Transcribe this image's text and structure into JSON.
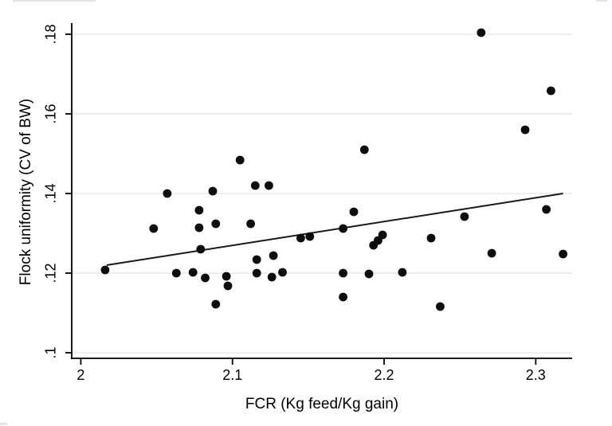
{
  "chart_data": {
    "type": "scatter",
    "title": "",
    "xlabel": "FCR (Kg feed/Kg gain)",
    "ylabel": "Flock uniformity (CV of BW)",
    "xlim": [
      1.994,
      2.324
    ],
    "ylim": [
      0.0986,
      0.1828
    ],
    "x_ticks": [
      2.0,
      2.1,
      2.2,
      2.3
    ],
    "x_tick_labels": [
      "2",
      "2.1",
      "2.2",
      "2.3"
    ],
    "y_ticks": [
      0.1,
      0.12,
      0.14,
      0.16,
      0.18
    ],
    "y_tick_labels": [
      ".1",
      ".12",
      ".14",
      ".16",
      ".18"
    ],
    "grid": "horizontal",
    "legend": "none",
    "marker_color": "#0d0d0d",
    "line_color": "#1a1a1a",
    "gridline_color": "#e9e9e9",
    "axis_color": "#000000",
    "points": [
      [
        2.016,
        0.1208
      ],
      [
        2.048,
        0.1312
      ],
      [
        2.057,
        0.14
      ],
      [
        2.063,
        0.12
      ],
      [
        2.074,
        0.1202
      ],
      [
        2.078,
        0.1358
      ],
      [
        2.078,
        0.1314
      ],
      [
        2.079,
        0.126
      ],
      [
        2.082,
        0.1188
      ],
      [
        2.087,
        0.1406
      ],
      [
        2.089,
        0.1324
      ],
      [
        2.089,
        0.1122
      ],
      [
        2.096,
        0.1192
      ],
      [
        2.097,
        0.1168
      ],
      [
        2.105,
        0.1484
      ],
      [
        2.112,
        0.1324
      ],
      [
        2.115,
        0.142
      ],
      [
        2.116,
        0.1234
      ],
      [
        2.116,
        0.12
      ],
      [
        2.124,
        0.142
      ],
      [
        2.126,
        0.119
      ],
      [
        2.127,
        0.1244
      ],
      [
        2.133,
        0.1202
      ],
      [
        2.145,
        0.1288
      ],
      [
        2.151,
        0.1292
      ],
      [
        2.173,
        0.1312
      ],
      [
        2.173,
        0.12
      ],
      [
        2.173,
        0.114
      ],
      [
        2.18,
        0.1354
      ],
      [
        2.187,
        0.151
      ],
      [
        2.19,
        0.1198
      ],
      [
        2.193,
        0.127
      ],
      [
        2.196,
        0.1282
      ],
      [
        2.199,
        0.1296
      ],
      [
        2.212,
        0.1202
      ],
      [
        2.231,
        0.1288
      ],
      [
        2.237,
        0.1116
      ],
      [
        2.253,
        0.1342
      ],
      [
        2.264,
        0.1804
      ],
      [
        2.271,
        0.125
      ],
      [
        2.293,
        0.156
      ],
      [
        2.307,
        0.136
      ],
      [
        2.31,
        0.1658
      ],
      [
        2.318,
        0.1248
      ]
    ],
    "fit_line": {
      "x": [
        2.017,
        2.318
      ],
      "y": [
        0.122,
        0.14
      ]
    }
  }
}
